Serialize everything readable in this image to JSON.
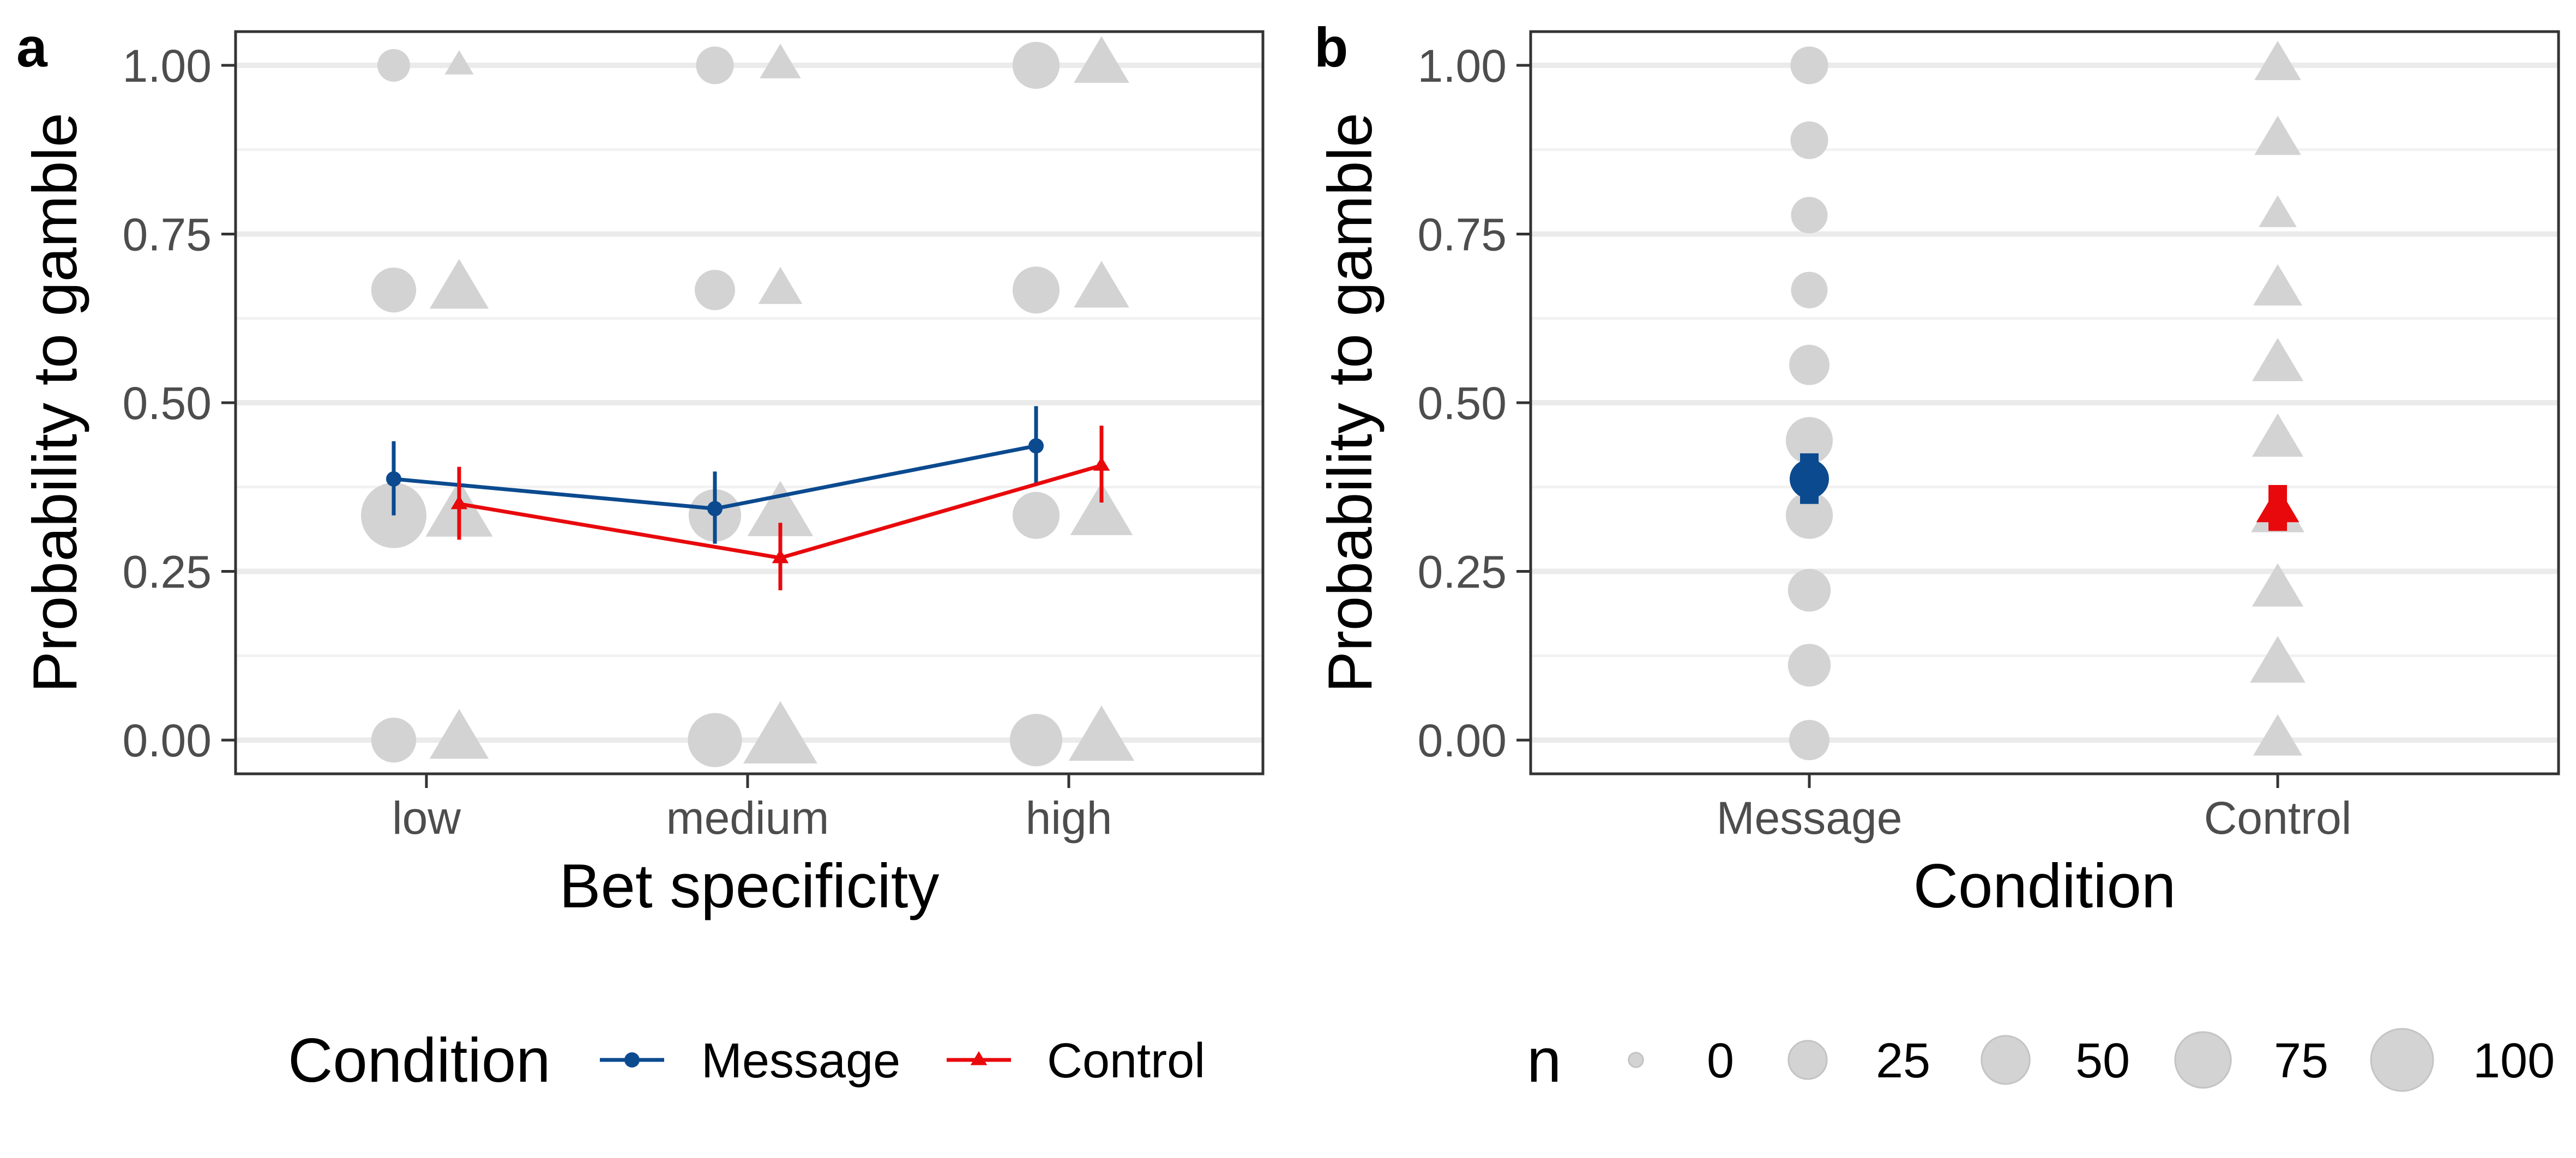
{
  "colors": {
    "message": "#0b4a8f",
    "control": "#e8090c",
    "raw": "#d3d3d3",
    "grid_major": "#ebebeb",
    "grid_minor": "#f2f2f2",
    "panel_border": "#333333"
  },
  "chart_data": [
    {
      "panel_tag": "a",
      "type": "line",
      "xlabel": "Bet specificity",
      "ylabel": "Probability to gamble",
      "categories": [
        "low",
        "medium",
        "high"
      ],
      "ylim": [
        -0.05,
        1.05
      ],
      "yticks": [
        "0.00",
        "0.25",
        "0.50",
        "0.75",
        "1.00"
      ],
      "grid": true,
      "series": [
        {
          "name": "Message",
          "shape": "circle",
          "values": [
            0.387,
            0.343,
            0.436
          ],
          "ci_low": [
            0.333,
            0.291,
            0.38
          ],
          "ci_high": [
            0.443,
            0.398,
            0.495
          ]
        },
        {
          "name": "Control",
          "shape": "triangle",
          "values": [
            0.35,
            0.27,
            0.407
          ],
          "ci_low": [
            0.297,
            0.222,
            0.352
          ],
          "ci_high": [
            0.405,
            0.322,
            0.466
          ]
        }
      ],
      "raw_points": {
        "Message": [
          {
            "category": "low",
            "y": 0.0,
            "n": 35
          },
          {
            "category": "low",
            "y": 0.333,
            "n": 100
          },
          {
            "category": "low",
            "y": 0.667,
            "n": 35
          },
          {
            "category": "low",
            "y": 1.0,
            "n": 12
          },
          {
            "category": "medium",
            "y": 0.0,
            "n": 60
          },
          {
            "category": "medium",
            "y": 0.333,
            "n": 55
          },
          {
            "category": "medium",
            "y": 0.667,
            "n": 25
          },
          {
            "category": "medium",
            "y": 1.0,
            "n": 20
          },
          {
            "category": "high",
            "y": 0.0,
            "n": 55
          },
          {
            "category": "high",
            "y": 0.333,
            "n": 40
          },
          {
            "category": "high",
            "y": 0.667,
            "n": 40
          },
          {
            "category": "high",
            "y": 1.0,
            "n": 40
          }
        ],
        "Control": [
          {
            "category": "low",
            "y": 0.0,
            "n": 60
          },
          {
            "category": "low",
            "y": 0.333,
            "n": 85
          },
          {
            "category": "low",
            "y": 0.667,
            "n": 60
          },
          {
            "category": "low",
            "y": 1.0,
            "n": 5
          },
          {
            "category": "medium",
            "y": 0.0,
            "n": 110
          },
          {
            "category": "medium",
            "y": 0.333,
            "n": 80
          },
          {
            "category": "medium",
            "y": 0.667,
            "n": 25
          },
          {
            "category": "medium",
            "y": 1.0,
            "n": 20
          },
          {
            "category": "high",
            "y": 0.0,
            "n": 80
          },
          {
            "category": "high",
            "y": 0.333,
            "n": 70
          },
          {
            "category": "high",
            "y": 0.667,
            "n": 50
          },
          {
            "category": "high",
            "y": 1.0,
            "n": 50
          }
        ]
      }
    },
    {
      "panel_tag": "b",
      "type": "scatter",
      "xlabel": "Condition",
      "ylabel": "Probability to gamble",
      "categories": [
        "Message",
        "Control"
      ],
      "ylim": [
        -0.05,
        1.05
      ],
      "yticks": [
        "0.00",
        "0.25",
        "0.50",
        "0.75",
        "1.00"
      ],
      "grid": true,
      "series": [
        {
          "name": "Message",
          "shape": "circle",
          "values": [
            0.387
          ],
          "ci_low": [
            0.35
          ],
          "ci_high": [
            0.425
          ]
        },
        {
          "name": "Control",
          "shape": "triangle",
          "values": [
            0.343
          ],
          "ci_low": [
            0.31
          ],
          "ci_high": [
            0.378
          ]
        }
      ],
      "raw_points": {
        "Message": [
          {
            "y": 0.0,
            "n": 25
          },
          {
            "y": 0.111,
            "n": 30
          },
          {
            "y": 0.222,
            "n": 30
          },
          {
            "y": 0.333,
            "n": 40
          },
          {
            "y": 0.444,
            "n": 40
          },
          {
            "y": 0.556,
            "n": 25
          },
          {
            "y": 0.667,
            "n": 18
          },
          {
            "y": 0.778,
            "n": 18
          },
          {
            "y": 0.889,
            "n": 20
          },
          {
            "y": 1.0,
            "n": 20
          }
        ],
        "Control": [
          {
            "y": 0.0,
            "n": 35
          },
          {
            "y": 0.111,
            "n": 50
          },
          {
            "y": 0.222,
            "n": 40
          },
          {
            "y": 0.333,
            "n": 45
          },
          {
            "y": 0.444,
            "n": 40
          },
          {
            "y": 0.556,
            "n": 40
          },
          {
            "y": 0.667,
            "n": 35
          },
          {
            "y": 0.778,
            "n": 15
          },
          {
            "y": 0.889,
            "n": 30
          },
          {
            "y": 1.0,
            "n": 30
          }
        ]
      }
    }
  ],
  "legend_condition": {
    "title": "Condition",
    "items": [
      {
        "label": "Message",
        "shape": "circle"
      },
      {
        "label": "Control",
        "shape": "triangle"
      }
    ]
  },
  "legend_n": {
    "title": "n",
    "items": [
      {
        "label": "0",
        "n": 0
      },
      {
        "label": "25",
        "n": 25
      },
      {
        "label": "50",
        "n": 50
      },
      {
        "label": "75",
        "n": 75
      },
      {
        "label": "100",
        "n": 100
      }
    ]
  }
}
